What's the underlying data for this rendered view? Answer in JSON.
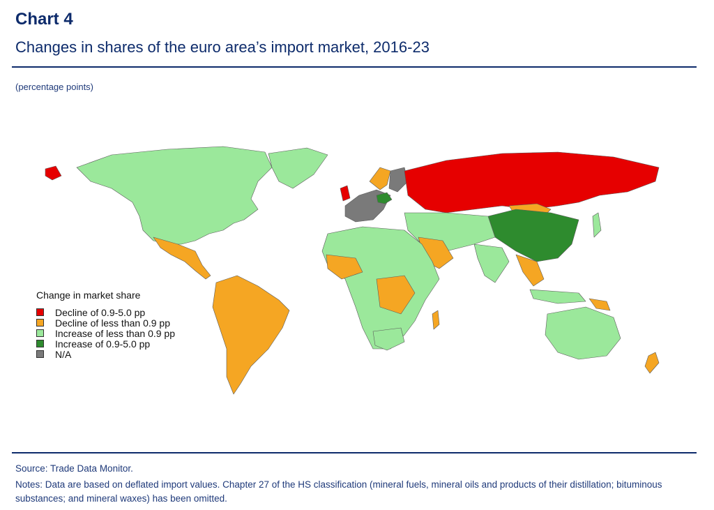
{
  "header": {
    "chart_label": "Chart 4",
    "title": "Changes in shares of the euro area’s import market, 2016-23",
    "unit": "(percentage points)"
  },
  "legend": {
    "title": "Change in market share",
    "items": [
      {
        "label": "Decline of 0.9-5.0 pp",
        "color": "#e60000"
      },
      {
        "label": "Decline of less than 0.9 pp",
        "color": "#f5a623"
      },
      {
        "label": "Increase of less than 0.9 pp",
        "color": "#9be89b"
      },
      {
        "label": "Increase of 0.9-5.0 pp",
        "color": "#2e8b2e"
      },
      {
        "label": "N/A",
        "color": "#7a7a7a"
      }
    ]
  },
  "map_colors": {
    "outline": "#5a5a5a"
  },
  "footer": {
    "source": "Source: Trade Data Monitor.",
    "notes": "Notes: Data are based on deflated import values. Chapter 27 of the HS classification (mineral fuels, mineral oils and products of their distillation; bituminous substances; and mineral waxes) has been omitted."
  }
}
